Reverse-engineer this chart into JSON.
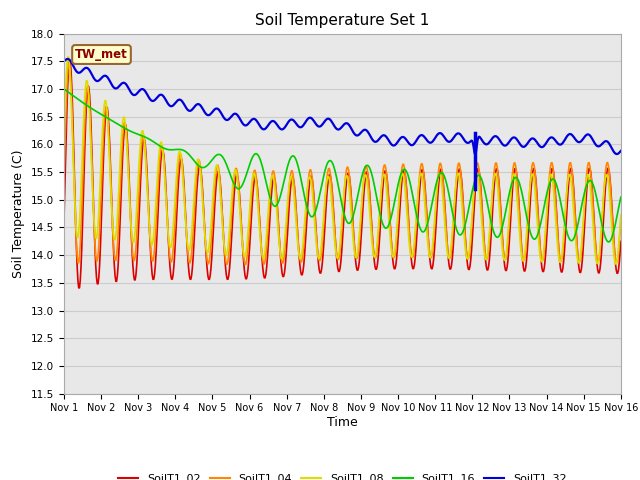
{
  "title": "Soil Temperature Set 1",
  "xlabel": "Time",
  "ylabel": "Soil Temperature (C)",
  "ylim": [
    11.5,
    18.0
  ],
  "annotation_text": "TW_met",
  "annotation_color": "#8B0000",
  "annotation_bg": "#FFFFCC",
  "annotation_border": "#996633",
  "grid_color": "#cccccc",
  "bg_color": "#e8e8e8",
  "fig_bg_color": "#ffffff",
  "series": {
    "SoilT1_02": {
      "color": "#dd0000"
    },
    "SoilT1_04": {
      "color": "#ff8800"
    },
    "SoilT1_08": {
      "color": "#dddd00"
    },
    "SoilT1_16": {
      "color": "#00cc00"
    },
    "SoilT1_32": {
      "color": "#0000dd"
    }
  },
  "xtick_labels": [
    "Nov 1",
    "Nov 2",
    "Nov 3",
    "Nov 4",
    "Nov 5",
    "Nov 6",
    "Nov 7",
    "Nov 8",
    "Nov 9",
    "Nov 10",
    "Nov 11",
    "Nov 12",
    "Nov 13",
    "Nov 14",
    "Nov 15",
    "Nov 16"
  ],
  "ytick_values": [
    11.5,
    12.0,
    12.5,
    13.0,
    13.5,
    14.0,
    14.5,
    15.0,
    15.5,
    16.0,
    16.5,
    17.0,
    17.5,
    18.0
  ]
}
